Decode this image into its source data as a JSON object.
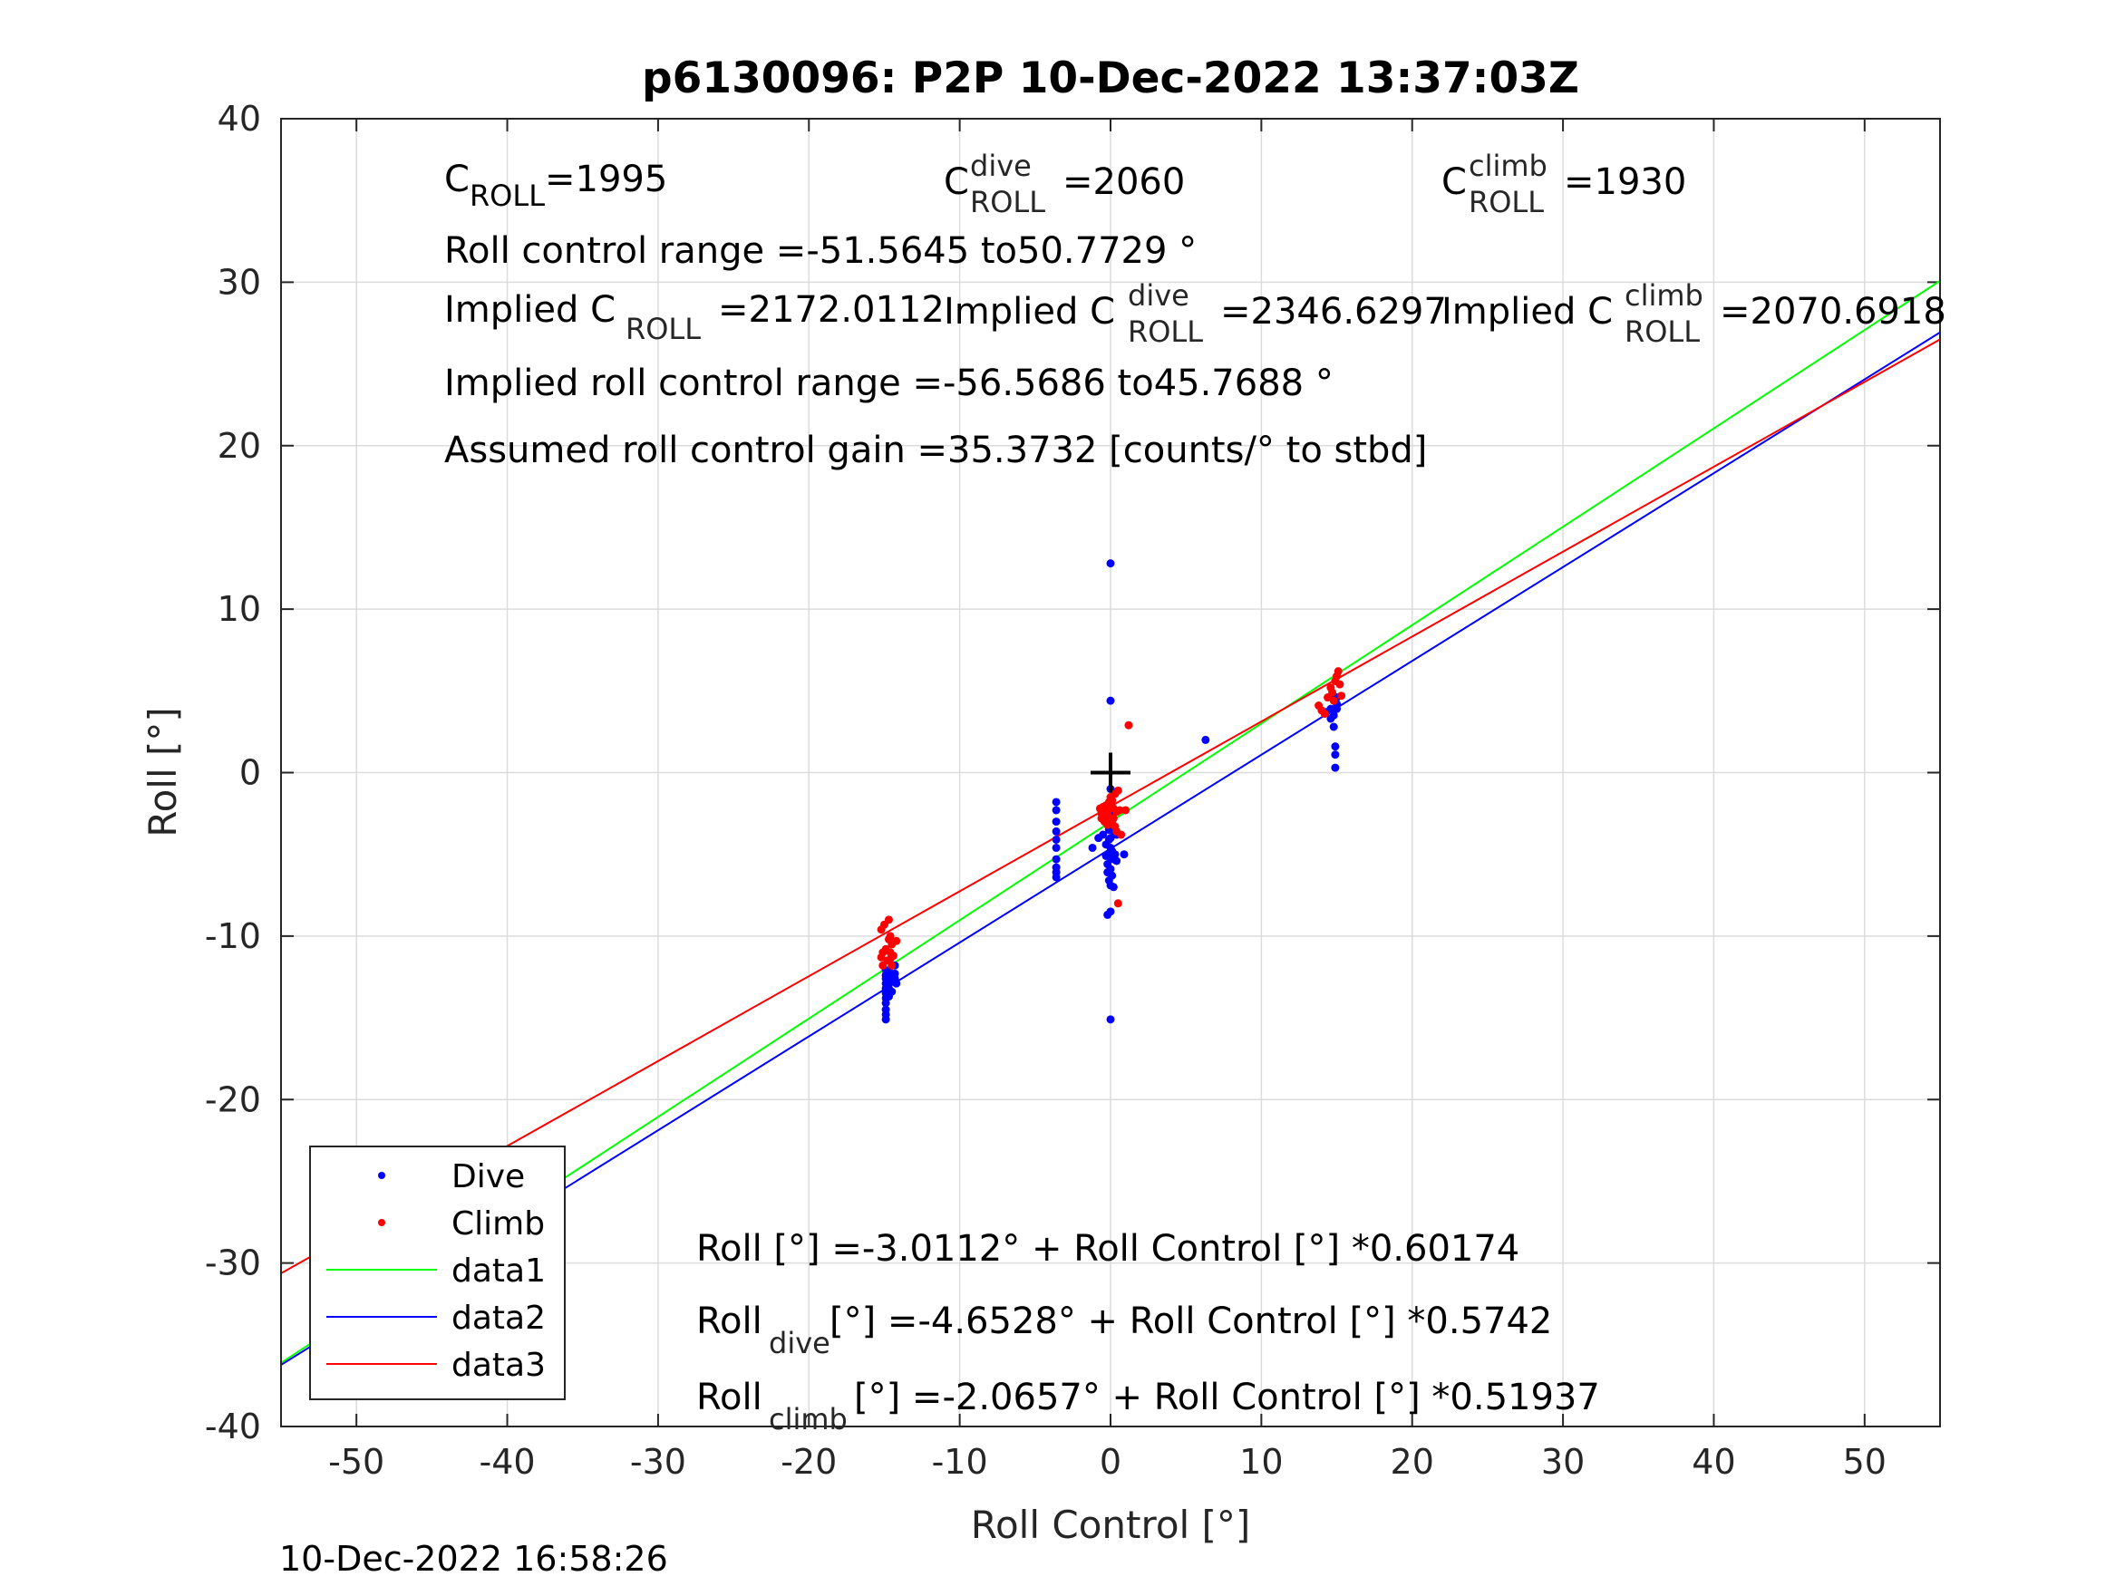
{
  "chart_data": {
    "type": "scatter",
    "title": "p6130096: P2P 10-Dec-2022 13:37:03Z",
    "xlabel": "Roll Control [°]",
    "ylabel": "Roll [°]",
    "xlim": [
      -55,
      55
    ],
    "ylim": [
      -40,
      40
    ],
    "xticks": [
      -50,
      -40,
      -30,
      -20,
      -10,
      0,
      10,
      20,
      30,
      40,
      50
    ],
    "yticks": [
      -40,
      -30,
      -20,
      -10,
      0,
      10,
      20,
      30,
      40
    ],
    "grid": true,
    "legend_position": "bottom-left",
    "center_marker": {
      "x": 0,
      "y": 0,
      "color": "#000000"
    },
    "series": [
      {
        "name": "Dive",
        "kind": "points",
        "color": "#0000ff",
        "x": [
          -14.9,
          -14.9,
          -14.9,
          -14.9,
          -14.9,
          -14.9,
          -14.9,
          -14.9,
          -14.9,
          -14.9,
          -14.9,
          -14.7,
          -14.7,
          -14.7,
          -14.7,
          -14.5,
          -14.5,
          -14.3,
          -14.3,
          -14.3,
          -14.2,
          -3.6,
          -3.6,
          -3.6,
          -3.6,
          -3.6,
          -3.6,
          -3.6,
          -3.6,
          -3.6,
          -3.6,
          -1.2,
          -0.8,
          -0.5,
          -0.3,
          -0.3,
          -0.2,
          -0.2,
          -0.2,
          -0.1,
          -0.1,
          -0.1,
          -0.1,
          0.0,
          0.0,
          0.0,
          0.0,
          0.0,
          0.0,
          0.0,
          0.0,
          0.0,
          0.1,
          0.1,
          0.1,
          0.2,
          0.2,
          0.2,
          0.3,
          0.4,
          0.4,
          0.9,
          0.0,
          0.0,
          0.0,
          6.3,
          14.3,
          14.6,
          14.6,
          14.8,
          14.8,
          14.8,
          14.9,
          14.9,
          14.9,
          15.0,
          15.0,
          15.0
        ],
        "y": [
          -15.1,
          -14.8,
          -14.5,
          -14.1,
          -13.8,
          -13.5,
          -13.2,
          -12.9,
          -12.6,
          -12.4,
          -12.1,
          -13.7,
          -13.2,
          -12.5,
          -12.1,
          -13.4,
          -12.8,
          -12.6,
          -12.3,
          -11.8,
          -12.9,
          -1.8,
          -2.3,
          -3.0,
          -3.6,
          -4.1,
          -4.6,
          -5.3,
          -5.8,
          -6.1,
          -6.4,
          -4.6,
          -4.0,
          -3.8,
          -4.4,
          -5.1,
          -5.6,
          -6.1,
          -8.7,
          -3.5,
          -4.1,
          -5.0,
          -6.6,
          -1.0,
          -2.6,
          -3.2,
          -4.0,
          -4.6,
          -5.2,
          -5.9,
          -6.9,
          -8.5,
          -2.9,
          -4.8,
          -6.3,
          -3.6,
          -5.3,
          -7.0,
          -5.0,
          -3.8,
          -5.4,
          -5.0,
          12.8,
          4.4,
          -15.1,
          2.0,
          3.7,
          3.3,
          3.9,
          4.6,
          3.5,
          2.8,
          1.6,
          1.1,
          0.3,
          4.2,
          3.9,
          4.6
        ]
      },
      {
        "name": "Climb",
        "kind": "points",
        "color": "#ff0000",
        "x": [
          -15.2,
          -15.2,
          -15.1,
          -15.1,
          -15.0,
          -14.9,
          -14.8,
          -14.7,
          -14.7,
          -14.6,
          -14.6,
          -14.6,
          -14.5,
          -14.5,
          -14.4,
          -14.2,
          -0.7,
          -0.6,
          -0.6,
          -0.5,
          -0.5,
          -0.4,
          -0.4,
          -0.3,
          -0.3,
          -0.2,
          -0.2,
          -0.1,
          -0.1,
          0.0,
          0.0,
          0.1,
          0.1,
          0.2,
          0.2,
          0.3,
          0.3,
          0.4,
          0.4,
          0.5,
          0.6,
          0.7,
          1.0,
          1.2,
          0.5,
          13.8,
          14.0,
          14.2,
          14.4,
          14.6,
          14.7,
          14.8,
          14.9,
          15.0,
          15.1,
          15.2,
          15.3
        ],
        "y": [
          -11.3,
          -9.6,
          -11.0,
          -11.8,
          -9.3,
          -10.8,
          -11.5,
          -9.0,
          -10.2,
          -11.4,
          -11.0,
          -10.0,
          -11.8,
          -10.5,
          -11.2,
          -10.3,
          -2.2,
          -2.5,
          -2.8,
          -2.1,
          -2.7,
          -2.3,
          -3.0,
          -2.0,
          -2.6,
          -2.4,
          -3.2,
          -1.8,
          -2.7,
          -1.5,
          -2.9,
          -1.7,
          -3.1,
          -2.2,
          -2.8,
          -1.3,
          -3.3,
          -2.4,
          -3.6,
          -1.1,
          -2.3,
          -3.8,
          -2.3,
          2.9,
          -8.0,
          4.1,
          3.8,
          3.6,
          4.6,
          5.2,
          4.9,
          4.4,
          5.6,
          5.9,
          6.2,
          5.4,
          4.7
        ]
      },
      {
        "name": "data1",
        "kind": "line",
        "color": "#00ff00",
        "x": [
          -55,
          55
        ],
        "y": [
          -36.107,
          30.084
        ]
      },
      {
        "name": "data2",
        "kind": "line",
        "color": "#0000ff",
        "x": [
          -55,
          55
        ],
        "y": [
          -36.234,
          26.928
        ]
      },
      {
        "name": "data3",
        "kind": "line",
        "color": "#ff0000",
        "x": [
          -55,
          55
        ],
        "y": [
          -30.631,
          26.5
        ]
      }
    ]
  },
  "annotations": {
    "c_roll": {
      "base": "C",
      "sub": "ROLL",
      "value": "=1995"
    },
    "c_roll_dive": {
      "base": "C",
      "sup": "dive",
      "sub": "ROLL",
      "value": "=2060"
    },
    "c_roll_climb": {
      "base": "C",
      "sup": "climb",
      "sub": "ROLL",
      "value": "=1930"
    },
    "roll_control_range": "Roll control range =-51.5645 to50.7729 °",
    "implied_c_roll": {
      "base": "Implied C",
      "sub": "ROLL",
      "value": "=2172.0112"
    },
    "implied_c_roll_dive": {
      "base": "Implied C",
      "sup": "dive",
      "sub": "ROLL",
      "value": "=2346.6297"
    },
    "implied_c_roll_climb": {
      "base": "Implied C",
      "sup": "climb",
      "sub": "ROLL",
      "value": "=2070.6918"
    },
    "implied_range": "Implied roll control range =-56.5686 to45.7688 °",
    "gain": "Assumed roll control gain =35.3732 [counts/° to stbd]",
    "fit_all": "Roll [°] =-3.0112° + Roll Control [°] *0.60174",
    "fit_dive": {
      "base": "Roll",
      "sub": "dive",
      "rest": " [°] =-4.6528° + Roll Control [°] *0.5742"
    },
    "fit_climb": {
      "base": "Roll",
      "sub": "climb",
      "rest": " [°] =-2.0657° + Roll Control [°] *0.51937"
    }
  },
  "timestamp": "10-Dec-2022 16:58:26"
}
